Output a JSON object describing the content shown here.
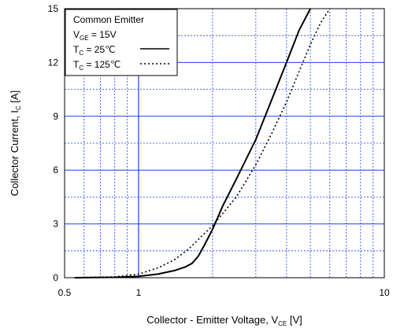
{
  "chart_data": {
    "type": "line",
    "x_scale": "log",
    "xlim": [
      0.5,
      10
    ],
    "ylim": [
      0,
      15
    ],
    "xticks": [
      "0.5",
      "1",
      "10"
    ],
    "yticks": [
      "0",
      "3",
      "6",
      "9",
      "12",
      "15"
    ],
    "grid": true,
    "grid_color": "#1f3fff",
    "xlabel": {
      "main": "Collector - Emitter Voltage, V",
      "sub": "CE",
      "unit": " [V]"
    },
    "ylabel": {
      "main": "Collector Current, I",
      "sub": "C",
      "unit": " [A]"
    },
    "legend": {
      "placement": "top-left",
      "title": "Common Emitter",
      "condition": {
        "main": "V",
        "sub": "GE",
        "rest": " = 15V"
      },
      "entries": [
        {
          "main": "T",
          "sub": "C",
          "rest": " =   25℃",
          "style": "solid"
        },
        {
          "main": "T",
          "sub": "C",
          "rest": " = 125℃",
          "style": "dotted"
        }
      ]
    },
    "series": [
      {
        "style": "solid",
        "x": [
          0.55,
          0.8,
          1.0,
          1.2,
          1.4,
          1.55,
          1.65,
          1.75,
          1.85,
          2.0,
          2.2,
          2.5,
          3.0,
          3.5,
          4.0,
          4.5,
          5.0
        ],
        "y": [
          0.0,
          0.02,
          0.08,
          0.2,
          0.4,
          0.6,
          0.8,
          1.2,
          1.8,
          2.7,
          4.0,
          5.5,
          7.7,
          10.0,
          12.0,
          13.8,
          15.0
        ]
      },
      {
        "style": "dotted",
        "x": [
          0.55,
          0.8,
          1.0,
          1.2,
          1.4,
          1.6,
          1.8,
          2.0,
          2.5,
          3.0,
          3.5,
          4.0,
          4.5,
          5.0,
          5.5,
          6.0
        ],
        "y": [
          0.0,
          0.05,
          0.2,
          0.55,
          1.0,
          1.6,
          2.3,
          2.9,
          4.5,
          6.3,
          8.1,
          9.8,
          11.5,
          13.0,
          14.2,
          15.0
        ]
      }
    ]
  }
}
